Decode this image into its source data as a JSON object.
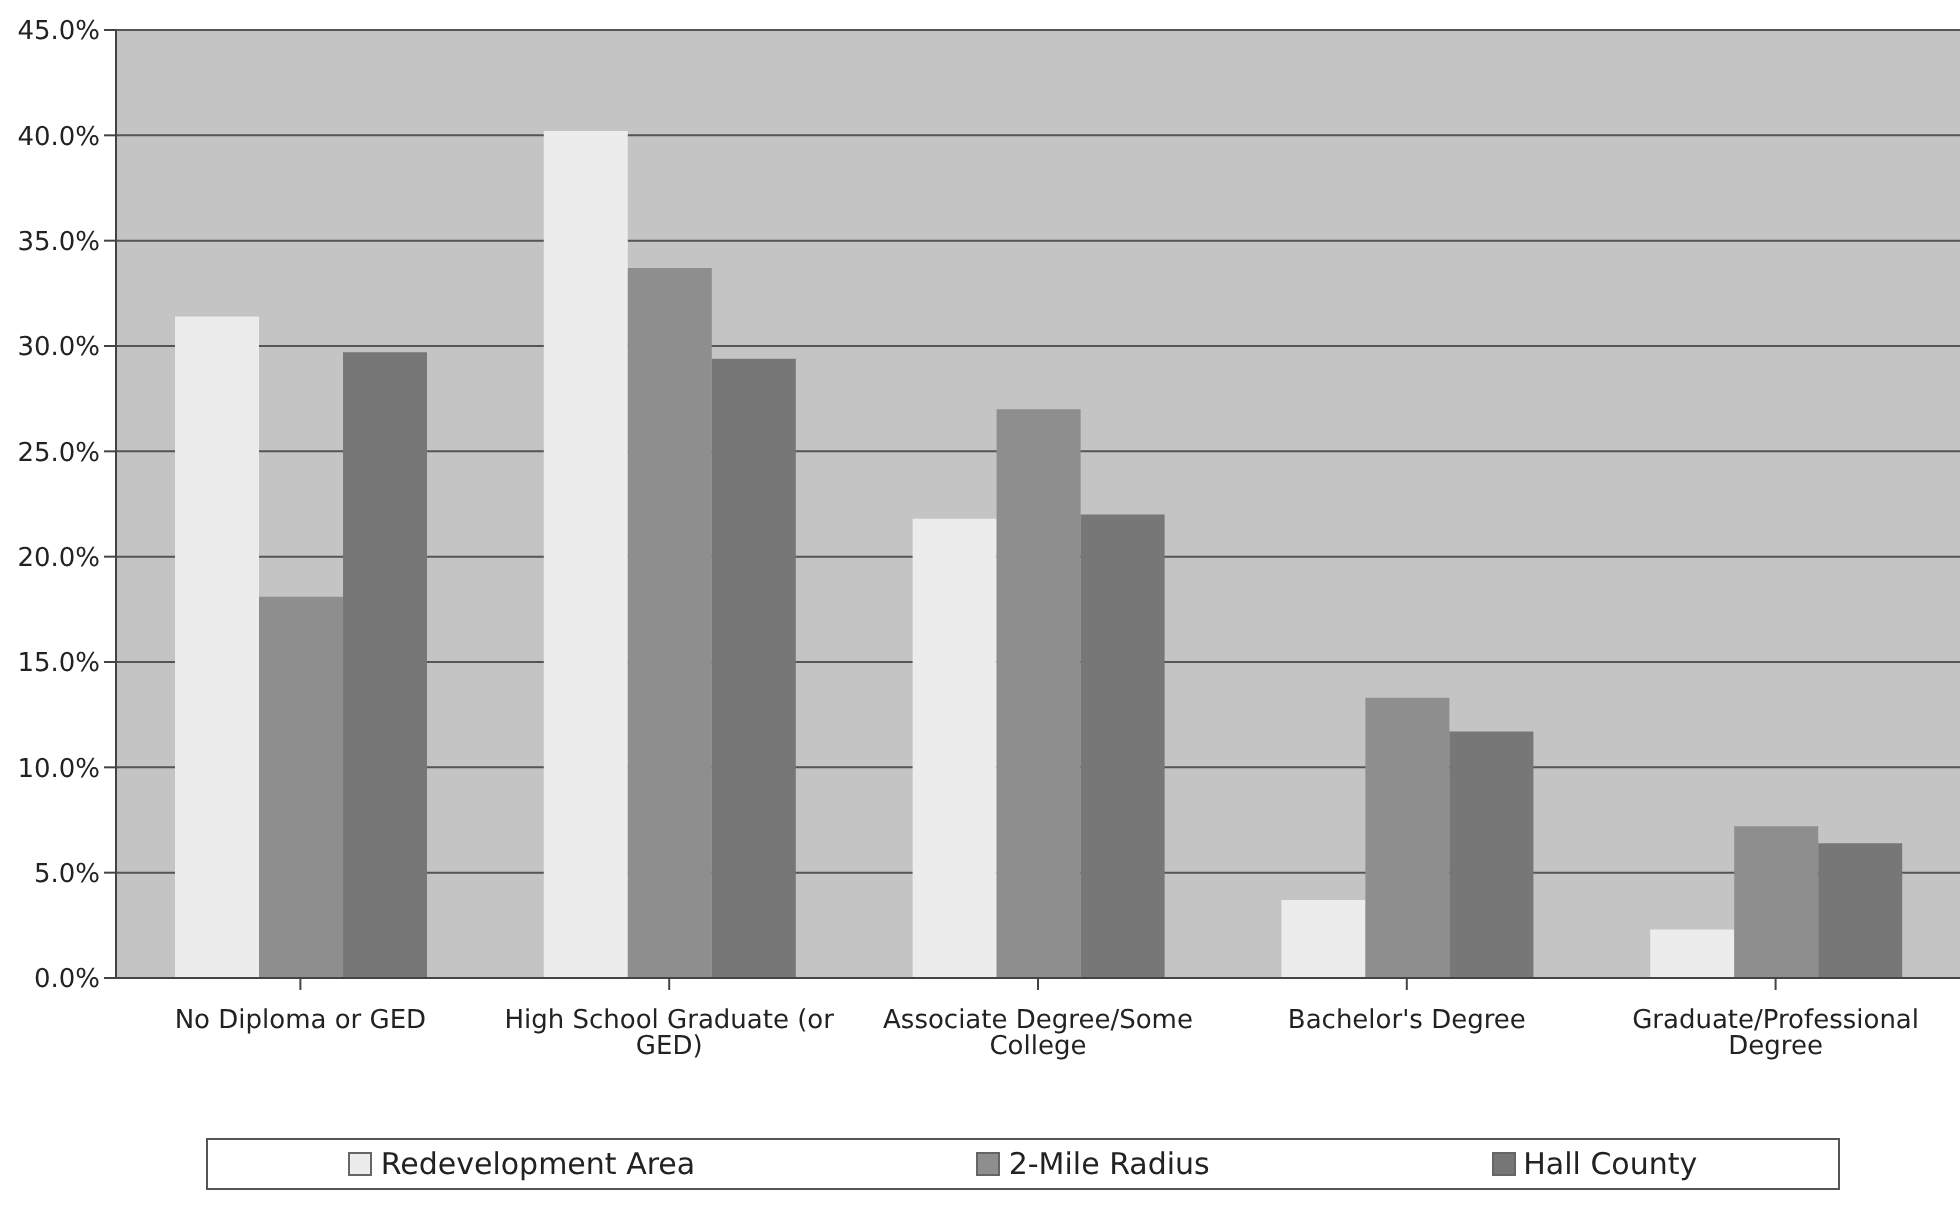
{
  "chart_data": {
    "type": "bar",
    "categories": [
      "No Diploma or GED",
      "High School Graduate (or GED)",
      "Associate Degree/Some College",
      "Bachelor's Degree",
      "Graduate/Professional Degree"
    ],
    "series": [
      {
        "name": "Redevelopment Area",
        "color": "#ececec",
        "values": [
          31.4,
          40.2,
          21.8,
          3.7,
          2.3
        ]
      },
      {
        "name": "2-Mile Radius",
        "color": "#8e8e8e",
        "values": [
          18.1,
          33.7,
          27.0,
          13.3,
          7.2
        ]
      },
      {
        "name": "Hall County",
        "color": "#777777",
        "values": [
          29.7,
          29.4,
          22.0,
          11.7,
          6.4
        ]
      }
    ],
    "ylim": [
      0,
      45
    ],
    "yticks": [
      {
        "value": 0,
        "label": "0.0%"
      },
      {
        "value": 5,
        "label": "5.0%"
      },
      {
        "value": 10,
        "label": "10.0%"
      },
      {
        "value": 15,
        "label": "15.0%"
      },
      {
        "value": 20,
        "label": "20.0%"
      },
      {
        "value": 25,
        "label": "25.0%"
      },
      {
        "value": 30,
        "label": "30.0%"
      },
      {
        "value": 35,
        "label": "35.0%"
      },
      {
        "value": 40,
        "label": "40.0%"
      },
      {
        "value": 45,
        "label": "45.0%"
      }
    ],
    "grid": "y",
    "legend": "bottom"
  }
}
